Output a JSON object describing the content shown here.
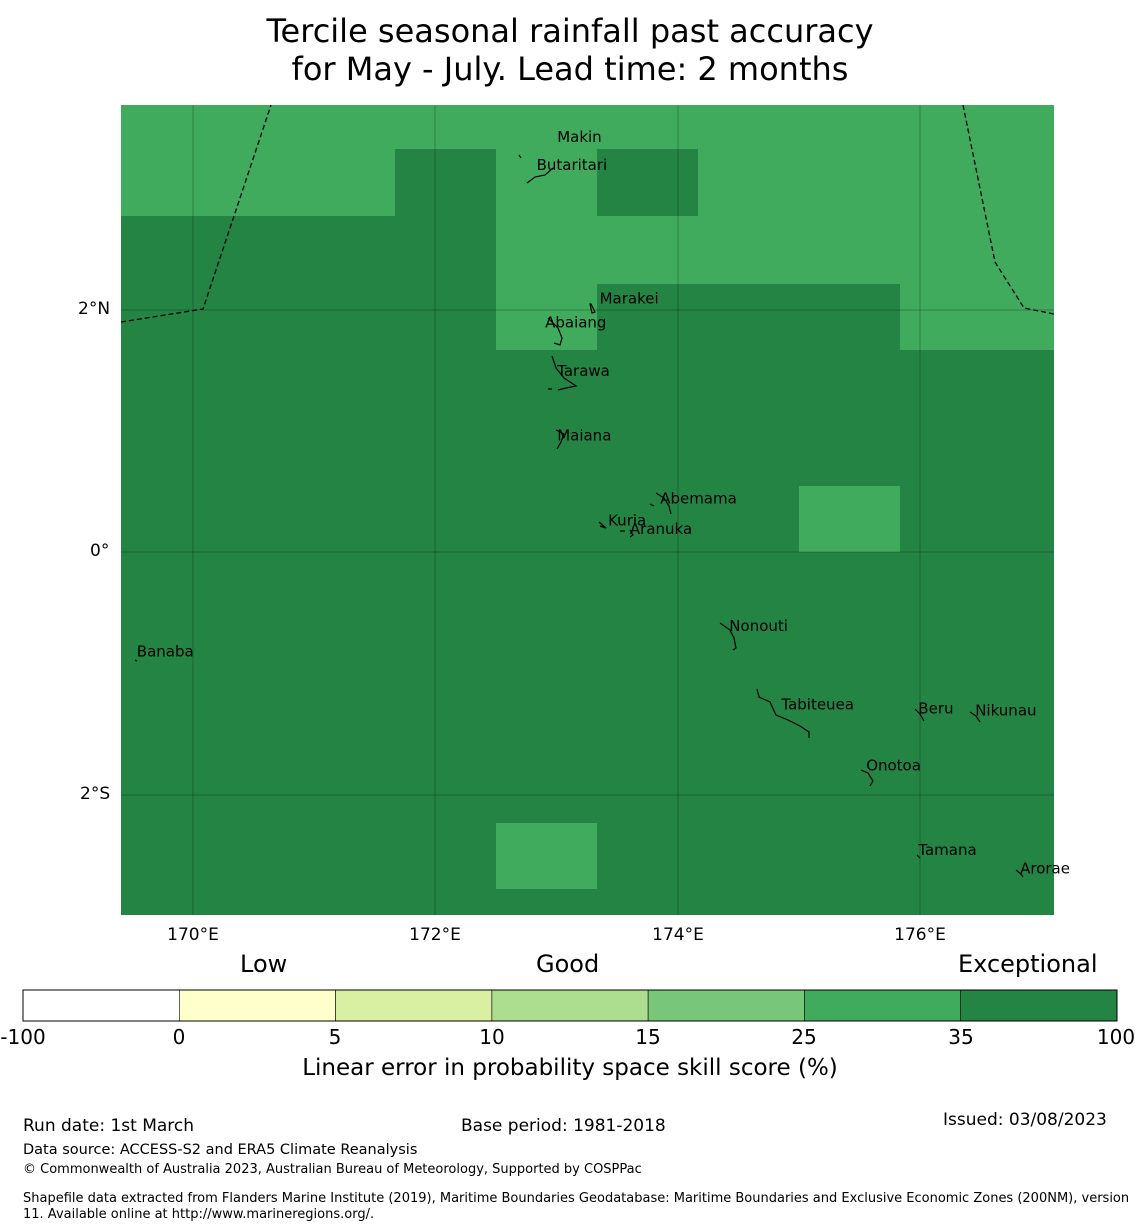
{
  "title": {
    "line1": "Tercile seasonal rainfall past accuracy",
    "line2": "for May - July. Lead time: 2 months"
  },
  "map": {
    "x_ticks": [
      "170°E",
      "172°E",
      "174°E",
      "176°E"
    ],
    "y_ticks": [
      "2°N",
      "0°",
      "2°S"
    ],
    "islands": [
      {
        "name": "Makin",
        "lon": 173.0,
        "lat": 3.38
      },
      {
        "name": "Butaritari",
        "lon": 172.83,
        "lat": 3.15
      },
      {
        "name": "Marakei",
        "lon": 173.35,
        "lat": 2.05
      },
      {
        "name": "Abaiang",
        "lon": 172.9,
        "lat": 1.85
      },
      {
        "name": "Tarawa",
        "lon": 173.0,
        "lat": 1.45
      },
      {
        "name": "Maiana",
        "lon": 173.0,
        "lat": 0.92
      },
      {
        "name": "Abemama",
        "lon": 173.85,
        "lat": 0.4
      },
      {
        "name": "Kuria",
        "lon": 173.42,
        "lat": 0.22
      },
      {
        "name": "Aranuka",
        "lon": 173.6,
        "lat": 0.15
      },
      {
        "name": "Nonouti",
        "lon": 174.42,
        "lat": -0.65
      },
      {
        "name": "Banaba",
        "lon": 169.53,
        "lat": -0.86
      },
      {
        "name": "Beru",
        "lon": 175.98,
        "lat": -1.33
      },
      {
        "name": "Tabiteuea",
        "lon": 174.85,
        "lat": -1.3
      },
      {
        "name": "Nikunau",
        "lon": 176.45,
        "lat": -1.35
      },
      {
        "name": "Onotoa",
        "lon": 175.55,
        "lat": -1.8
      },
      {
        "name": "Tamana",
        "lon": 175.98,
        "lat": -2.5
      },
      {
        "name": "Arorae",
        "lon": 176.82,
        "lat": -2.65
      }
    ]
  },
  "colorbar": {
    "categories": [
      "Low",
      "Good",
      "Exceptional"
    ],
    "boundaries": [
      "-100",
      "0",
      "5",
      "10",
      "15",
      "25",
      "35",
      "100"
    ],
    "colors": [
      "#ffffff",
      "#ffffcc",
      "#d9f0a3",
      "#addd8e",
      "#78c679",
      "#41ab5d",
      "#238443"
    ],
    "title": "Linear error in probability space skill score (%)"
  },
  "footer": {
    "run_date": "Run date: 1st March",
    "base_period": "Base period: 1981-2018",
    "issued": "Issued: 03/08/2023",
    "data_source": "Data source: ACCESS-S2 and ERA5 Climate Reanalysis",
    "copyright": "© Commonwealth of Australia 2023, Australian Bureau of Meteorology, Supported by COSPPac",
    "shapefile": "Shapefile data extracted from Flanders Marine Institute (2019), Maritime Boundaries Geodatabase: Maritime Boundaries and Exclusive Economic Zones (200NM), version 11. Available online at http://www.marineregions.org/."
  }
}
